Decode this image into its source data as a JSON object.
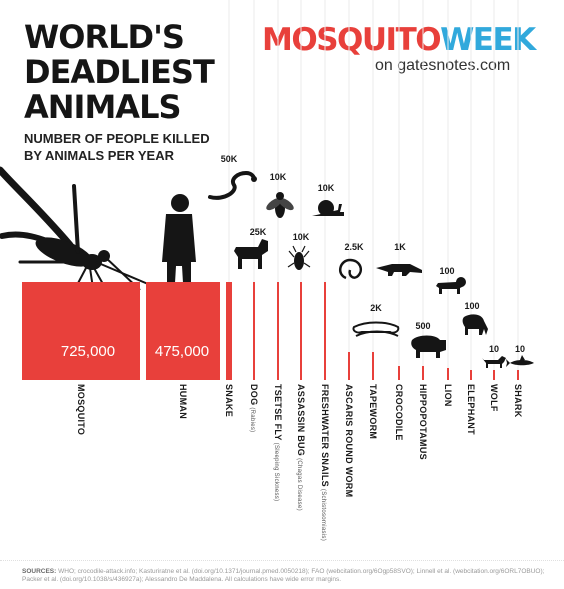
{
  "header": {
    "title_lines": [
      "WORLD'S",
      "DEADLIEST",
      "ANIMALS"
    ],
    "subtitle_lines": [
      "NUMBER OF PEOPLE KILLED",
      "BY ANIMALS PER YEAR"
    ]
  },
  "brand": {
    "part1": "MOSQUITO",
    "part2": "WEEK",
    "tagline": "on gatesnotes.com"
  },
  "sources": {
    "label": "SOURCES:",
    "text": "WHO; crocodile-attack.info; Kasturiratne et al. (doi.org/10.1371/journal.pmed.0050218); FAO (webcitation.org/6Ogp58SVO); Linnell et al. (webcitation.org/6ORL7OBUO); Packer et al. (doi.org/10.1038/s/436927a); Alessandro De Maddalena. All calculations have wide error margins."
  },
  "colors": {
    "bar": "#e8403b",
    "rule": "#ebebeb",
    "brand_red": "#e8403b",
    "brand_blue": "#31a9dc"
  },
  "chart_data": {
    "type": "bar",
    "title": "NUMBER OF PEOPLE KILLED BY ANIMALS PER YEAR",
    "categories": [
      "MOSQUITO",
      "HUMAN",
      "SNAKE",
      "DOG",
      "TSETSE FLY",
      "ASSASSIN BUG",
      "FRESHWATER SNAILS",
      "ASCARIS ROUND WORM",
      "TAPEWORM",
      "CROCODILE",
      "HIPPOPOTAMUS",
      "LION",
      "ELEPHANT",
      "WOLF",
      "SHARK"
    ],
    "category_notes": [
      "",
      "",
      "",
      "(Rabies)",
      "(Sleeping Sickness)",
      "(Chagas Disease)",
      "(Schistosomiasis)",
      "",
      "",
      "",
      "",
      "",
      "",
      "",
      ""
    ],
    "values": [
      725000,
      475000,
      50000,
      25000,
      10000,
      10000,
      10000,
      2500,
      2000,
      1000,
      500,
      100,
      100,
      10,
      10
    ],
    "value_labels": [
      "725,000",
      "475,000",
      "50K",
      "25K",
      "10K",
      "10K",
      "10K",
      "2.5K",
      "2K",
      "1K",
      "500",
      "100",
      "100",
      "10",
      "10"
    ],
    "icons": [
      "mosquito-icon",
      "human-icon",
      "snake-icon",
      "dog-icon",
      "tsetse-fly-icon",
      "assassin-bug-icon",
      "snail-icon",
      "round-worm-icon",
      "tapeworm-icon",
      "crocodile-icon",
      "hippopotamus-icon",
      "lion-icon",
      "elephant-icon",
      "wolf-icon",
      "shark-icon"
    ],
    "scale": "proportional bar widths, decreasing bar heights"
  }
}
